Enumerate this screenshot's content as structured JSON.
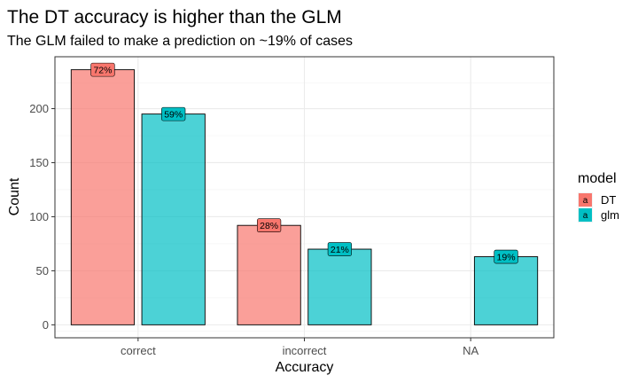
{
  "chart_data": {
    "type": "bar",
    "title": "The DT accuracy is higher than the GLM",
    "subtitle": "The GLM failed to make a prediction on ~19% of cases",
    "xlabel": "Accuracy",
    "ylabel": "Count",
    "categories": [
      "correct",
      "incorrect",
      "NA"
    ],
    "series": [
      {
        "name": "DT",
        "color": "#F8766D",
        "values": [
          236,
          92,
          null
        ],
        "labels": [
          "72%",
          "28%",
          null
        ]
      },
      {
        "name": "glm",
        "color": "#00BFC4",
        "values": [
          195,
          70,
          63
        ],
        "labels": [
          "59%",
          "21%",
          "19%"
        ]
      }
    ],
    "ylim": [
      -12,
      248
    ],
    "yticks": [
      0,
      50,
      100,
      150,
      200
    ],
    "grid": true,
    "legend": {
      "title": "model",
      "position": "right",
      "key_glyph": "a"
    }
  }
}
